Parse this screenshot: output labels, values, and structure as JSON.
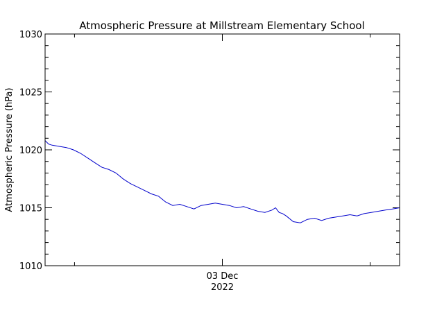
{
  "chart_data": {
    "type": "line",
    "title": "Atmospheric Pressure at Millstream Elementary School",
    "ylabel": "Atmospheric Pressure (hPa)",
    "xlabel": "",
    "ylim": [
      1010,
      1030
    ],
    "yticks": [
      1010,
      1015,
      1020,
      1025,
      1030
    ],
    "yticks_minor_step": 1,
    "xlim": [
      0,
      1
    ],
    "xticks": [
      {
        "x": 0.5,
        "label": "03 Dec",
        "sublabel": "2022"
      }
    ],
    "x_minor_ticks": [
      0.083,
      0.917
    ],
    "grid": false,
    "legend": "none",
    "line_color": "#0000cc",
    "series": [
      {
        "x": [
          0.0,
          0.01,
          0.02,
          0.04,
          0.06,
          0.08,
          0.1,
          0.12,
          0.14,
          0.16,
          0.18,
          0.2,
          0.22,
          0.24,
          0.26,
          0.28,
          0.3,
          0.32,
          0.34,
          0.36,
          0.38,
          0.4,
          0.42,
          0.44,
          0.46,
          0.48,
          0.5,
          0.52,
          0.54,
          0.56,
          0.58,
          0.6,
          0.62,
          0.64,
          0.65,
          0.66,
          0.67,
          0.68,
          0.7,
          0.72,
          0.74,
          0.76,
          0.78,
          0.8,
          0.82,
          0.84,
          0.86,
          0.88,
          0.9,
          0.92,
          0.94,
          0.96,
          0.98,
          1.0
        ],
        "values": [
          1020.8,
          1020.5,
          1020.4,
          1020.3,
          1020.2,
          1020.0,
          1019.7,
          1019.3,
          1018.9,
          1018.5,
          1018.3,
          1018.0,
          1017.5,
          1017.1,
          1016.8,
          1016.5,
          1016.2,
          1016.0,
          1015.5,
          1015.2,
          1015.3,
          1015.1,
          1014.9,
          1015.2,
          1015.3,
          1015.4,
          1015.3,
          1015.2,
          1015.0,
          1015.1,
          1014.9,
          1014.7,
          1014.6,
          1014.8,
          1015.0,
          1014.6,
          1014.5,
          1014.3,
          1013.8,
          1013.7,
          1014.0,
          1014.1,
          1013.9,
          1014.1,
          1014.2,
          1014.3,
          1014.4,
          1014.3,
          1014.5,
          1014.6,
          1014.7,
          1014.8,
          1014.9,
          1015.0
        ]
      }
    ]
  }
}
